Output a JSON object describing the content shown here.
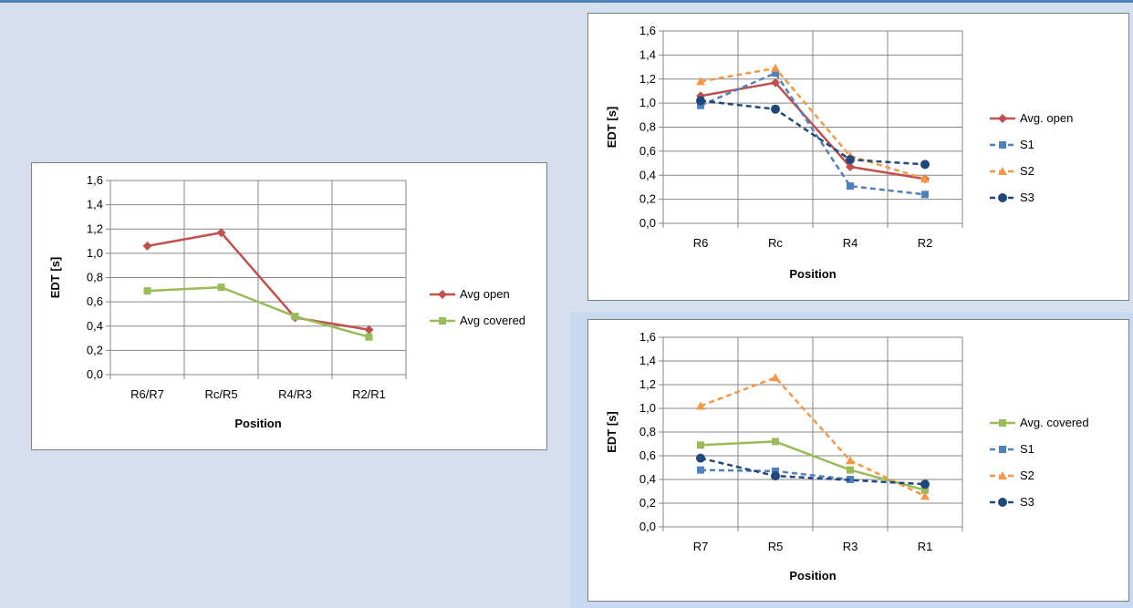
{
  "chart_data": [
    {
      "type": "line",
      "categories": [
        "R6/R7",
        "Rc/R5",
        "R4/R3",
        "R2/R1"
      ],
      "series": [
        {
          "name": "Avg open",
          "values": [
            1.06,
            1.17,
            0.47,
            0.37
          ],
          "color": "#c0504d",
          "marker": "diamond",
          "dash": false
        },
        {
          "name": "Avg covered",
          "values": [
            0.69,
            0.72,
            0.48,
            0.31
          ],
          "color": "#9bbb59",
          "marker": "square",
          "dash": false
        }
      ],
      "yticks": [
        "0,0",
        "0,2",
        "0,4",
        "0,6",
        "0,8",
        "1,0",
        "1,2",
        "1,4",
        "1,6"
      ],
      "ylim": [
        0,
        1.6
      ],
      "xlabel": "Position",
      "ylabel": "EDT [s]",
      "grid": true,
      "legend": "right"
    },
    {
      "type": "line",
      "categories": [
        "R6",
        "Rc",
        "R4",
        "R2"
      ],
      "series": [
        {
          "name": "Avg. open",
          "values": [
            1.06,
            1.17,
            0.47,
            0.37
          ],
          "color": "#c0504d",
          "marker": "diamond",
          "dash": false
        },
        {
          "name": "S1",
          "values": [
            0.98,
            1.25,
            0.31,
            0.24
          ],
          "color": "#4f81bd",
          "marker": "square",
          "dash": true
        },
        {
          "name": "S2",
          "values": [
            1.18,
            1.29,
            0.56,
            0.37
          ],
          "color": "#f79646",
          "marker": "triangle",
          "dash": true
        },
        {
          "name": "S3",
          "values": [
            1.02,
            0.95,
            0.53,
            0.49
          ],
          "color": "#1f497d",
          "marker": "circle",
          "dash": true
        }
      ],
      "yticks": [
        "0,0",
        "0,2",
        "0,4",
        "0,6",
        "0,8",
        "1,0",
        "1,2",
        "1,4",
        "1,6"
      ],
      "ylim": [
        0,
        1.6
      ],
      "xlabel": "Position",
      "ylabel": "EDT [s]",
      "grid": true,
      "legend": "right"
    },
    {
      "type": "line",
      "categories": [
        "R7",
        "R5",
        "R3",
        "R1"
      ],
      "series": [
        {
          "name": "Avg. covered",
          "values": [
            0.69,
            0.72,
            0.48,
            0.31
          ],
          "color": "#9bbb59",
          "marker": "square",
          "dash": false
        },
        {
          "name": "S1",
          "values": [
            0.48,
            0.47,
            0.4,
            null
          ],
          "color": "#4f81bd",
          "marker": "square",
          "dash": true
        },
        {
          "name": "S2",
          "values": [
            1.02,
            1.26,
            0.56,
            0.26
          ],
          "color": "#f79646",
          "marker": "triangle",
          "dash": true
        },
        {
          "name": "S3",
          "values": [
            0.58,
            0.43,
            null,
            0.36
          ],
          "color": "#1f497d",
          "marker": "circle",
          "dash": true
        }
      ],
      "yticks": [
        "0,0",
        "0,2",
        "0,4",
        "0,6",
        "0,8",
        "1,0",
        "1,2",
        "1,4",
        "1,6"
      ],
      "ylim": [
        0,
        1.6
      ],
      "xlabel": "Position",
      "ylabel": "EDT [s]",
      "grid": true,
      "legend": "right"
    }
  ]
}
